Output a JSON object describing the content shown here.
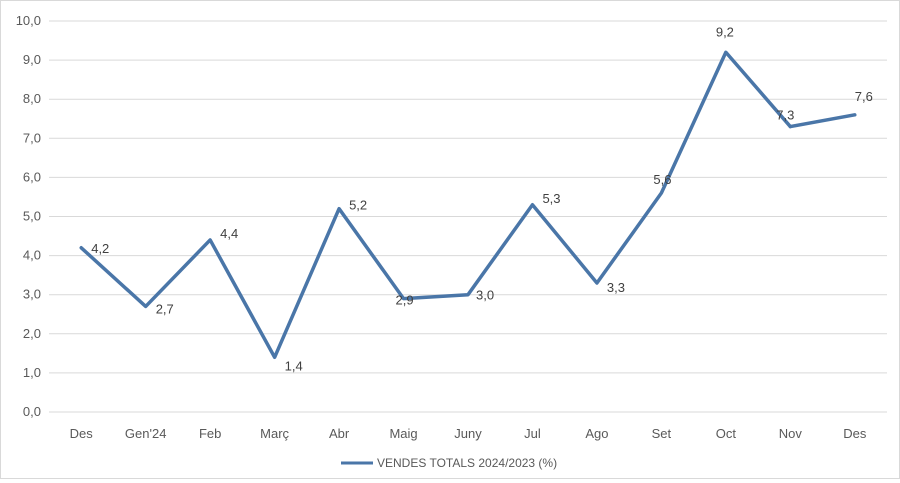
{
  "chart_data": {
    "type": "line",
    "title": "",
    "xlabel": "",
    "ylabel": "",
    "categories": [
      "Des",
      "Gen'24",
      "Feb",
      "Març",
      "Abr",
      "Maig",
      "Juny",
      "Jul",
      "Ago",
      "Set",
      "Oct",
      "Nov",
      "Des"
    ],
    "series": [
      {
        "name": "VENDES TOTALS 2024/2023 (%)",
        "values": [
          4.2,
          2.7,
          4.4,
          1.4,
          5.2,
          2.9,
          3.0,
          5.3,
          3.3,
          5.6,
          9.2,
          7.3,
          7.6
        ],
        "labels": [
          "4,2",
          "2,7",
          "4,4",
          "1,4",
          "5,2",
          "2,9",
          "3,0",
          "5,3",
          "3,3",
          "5,6",
          "9,2",
          "7,3",
          "7,6"
        ],
        "color": "#4a76a8"
      }
    ],
    "ylim": [
      0,
      10
    ],
    "yticks": [
      "0,0",
      "1,0",
      "2,0",
      "3,0",
      "4,0",
      "5,0",
      "6,0",
      "7,0",
      "8,0",
      "9,0",
      "10,0"
    ],
    "grid": true,
    "legend": "bottom"
  }
}
